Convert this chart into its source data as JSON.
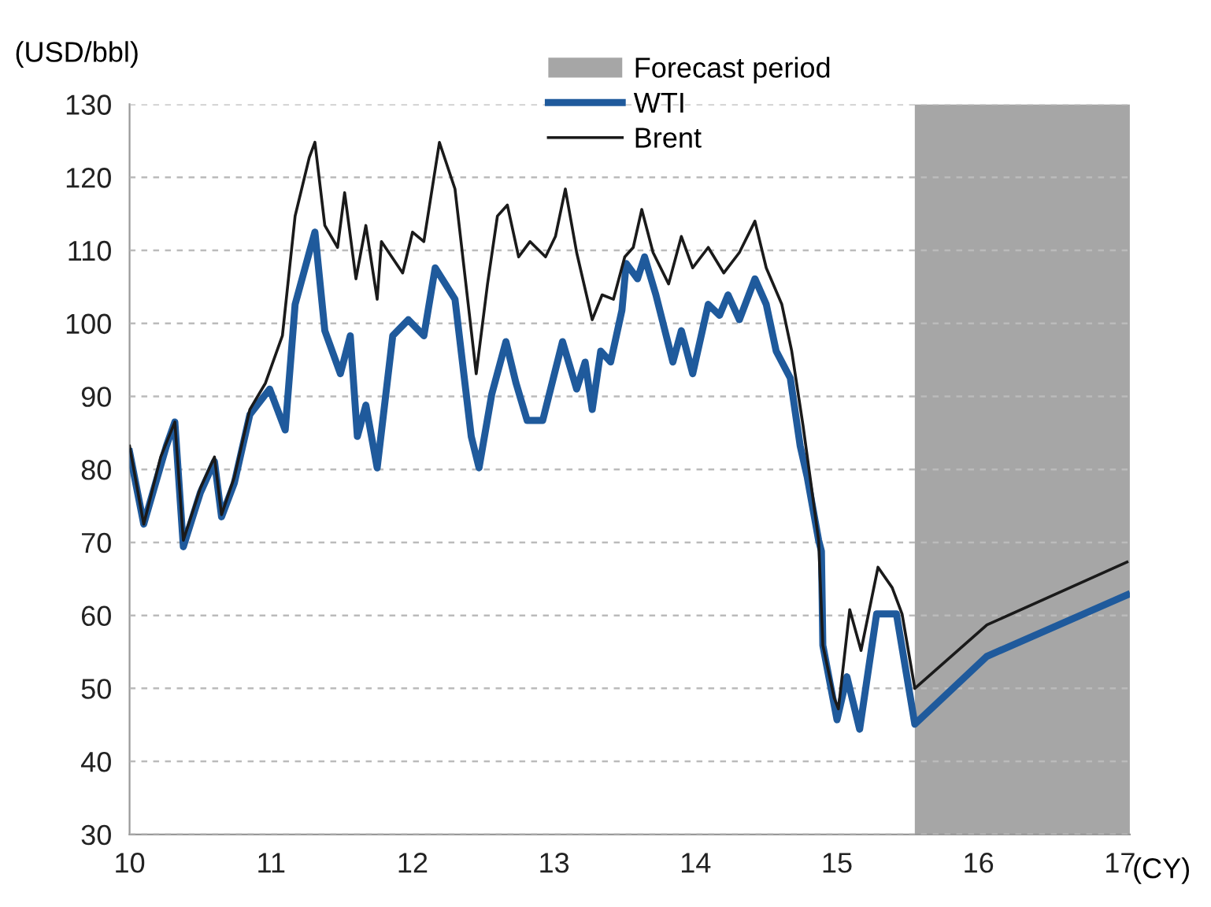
{
  "chart_data": {
    "type": "line",
    "xlabel": "(CY)",
    "ylabel": "(USD/bbl)",
    "xlim": [
      10,
      17.07
    ],
    "xticks": [
      10,
      11,
      12,
      13,
      14,
      15,
      16,
      17
    ],
    "ylim": [
      30,
      130
    ],
    "yticks": [
      30,
      40,
      50,
      60,
      70,
      80,
      90,
      100,
      110,
      120,
      130
    ],
    "grid": "y",
    "legend": "top",
    "line_style": "solid",
    "marker": "none",
    "bands": [
      {
        "axis": "x",
        "from": 15.55,
        "to": 17.07,
        "label": "Forecast period",
        "color": "#a6a6a6"
      }
    ],
    "series": [
      {
        "name": "WTI",
        "color": "#1f5a9c",
        "x": [
          10.0,
          10.1,
          10.26,
          10.32,
          10.38,
          10.5,
          10.6,
          10.65,
          10.74,
          10.85,
          10.99,
          11.1,
          11.17,
          11.27,
          11.31,
          11.38,
          11.49,
          11.56,
          11.61,
          11.67,
          11.75,
          11.86,
          11.97,
          12.08,
          12.16,
          12.3,
          12.415,
          12.47,
          12.56,
          12.66,
          12.73,
          12.81,
          12.92,
          13.06,
          13.16,
          13.22,
          13.27,
          13.33,
          13.4,
          13.48,
          13.51,
          13.59,
          13.64,
          13.72,
          13.84,
          13.9,
          13.98,
          14.09,
          14.17,
          14.23,
          14.31,
          14.42,
          14.5,
          14.57,
          14.67,
          14.74,
          14.79,
          14.87,
          14.89,
          14.9,
          15.0,
          15.07,
          15.16,
          15.28,
          15.42,
          15.55,
          16.06,
          17.05
        ],
        "values": [
          82.4,
          72.5,
          83.2,
          86.5,
          69.4,
          76.8,
          81.1,
          73.5,
          78.1,
          87.5,
          91.0,
          85.4,
          102.6,
          109.7,
          112.5,
          99.0,
          93.1,
          98.3,
          84.5,
          88.8,
          80.2,
          98.3,
          100.5,
          98.3,
          107.6,
          103.3,
          84.5,
          80.2,
          90.3,
          97.5,
          91.9,
          86.7,
          86.7,
          97.5,
          91.0,
          94.7,
          88.2,
          96.2,
          94.7,
          101.8,
          108.2,
          106.1,
          109.1,
          103.9,
          94.7,
          99.0,
          93.1,
          102.6,
          101.1,
          103.9,
          100.5,
          106.1,
          102.6,
          96.2,
          92.5,
          83.2,
          78.9,
          70.3,
          68.8,
          55.9,
          45.7,
          51.6,
          44.4,
          60.2,
          60.2,
          45.1,
          54.4,
          62.8
        ]
      },
      {
        "name": "Brent",
        "color": "#1a1a1a",
        "x": [
          10.0,
          10.1,
          10.22,
          10.32,
          10.38,
          10.5,
          10.6,
          10.65,
          10.74,
          10.85,
          10.96,
          11.08,
          11.17,
          11.27,
          11.31,
          11.38,
          11.47,
          11.52,
          11.6,
          11.67,
          11.75,
          11.78,
          11.93,
          12.0,
          12.08,
          12.19,
          12.3,
          12.45,
          12.53,
          12.6,
          12.67,
          12.75,
          12.83,
          12.94,
          13.01,
          13.08,
          13.16,
          13.27,
          13.34,
          13.42,
          13.5,
          13.56,
          13.62,
          13.7,
          13.81,
          13.9,
          13.98,
          14.09,
          14.2,
          14.31,
          14.42,
          14.5,
          14.61,
          14.68,
          14.76,
          14.81,
          14.87,
          14.9,
          14.98,
          15.01,
          15.09,
          15.17,
          15.29,
          15.39,
          15.46,
          15.55,
          16.06,
          17.05
        ],
        "values": [
          83.2,
          72.5,
          81.7,
          86.5,
          70.3,
          77.4,
          81.7,
          73.8,
          78.9,
          88.2,
          91.8,
          98.3,
          114.7,
          122.7,
          124.8,
          113.4,
          110.4,
          117.9,
          106.1,
          113.4,
          103.3,
          111.2,
          106.9,
          112.5,
          111.2,
          124.8,
          118.4,
          93.1,
          105.4,
          114.7,
          116.2,
          109.1,
          111.2,
          109.1,
          111.9,
          118.4,
          109.7,
          100.5,
          103.9,
          103.3,
          109.1,
          110.4,
          115.6,
          109.7,
          105.4,
          111.9,
          107.6,
          110.4,
          106.9,
          109.7,
          114.0,
          107.6,
          102.6,
          96.2,
          86.0,
          78.9,
          70.3,
          55.9,
          48.7,
          47.2,
          60.8,
          55.2,
          66.6,
          63.8,
          60.2,
          50.0,
          58.7,
          67.3
        ]
      }
    ]
  }
}
